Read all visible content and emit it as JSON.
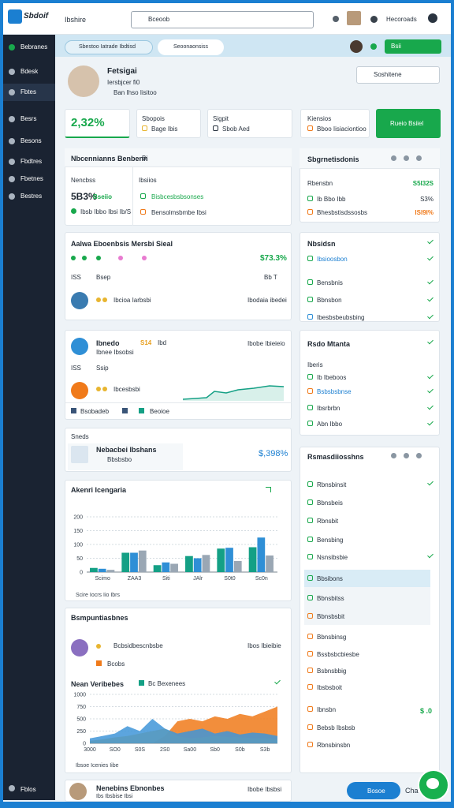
{
  "topbar": {
    "brand": "Sbdoif",
    "title": "Ibshire",
    "search": "Bceoob",
    "account": "Hecoroads"
  },
  "sidebar": {
    "items": [
      "Bebranes",
      "Bdesk",
      "Fbtes",
      "Besrs",
      "Besons",
      "Fbdtres",
      "Fbetnes",
      "Bestres"
    ],
    "footer": "Fblos"
  },
  "toolbar": {
    "filter": "Sbestoo Iatrade Ibdtisd",
    "search": "Seoonaonsiss",
    "button": "Bsii"
  },
  "profile": {
    "name": "Fetsigai",
    "role": "Iersbjcer fi0",
    "meta": "Ban Ihso Iisitoo",
    "search": "Soshitene"
  },
  "stats": {
    "headline": "2,32%",
    "cards": [
      {
        "title": "Sbopois",
        "sub": "Bage Ibis"
      },
      {
        "title": "Sigpit",
        "sub": "Sbob Aed"
      },
      {
        "title": "Kiensios",
        "sub": "Bboo Iisiaciontioo"
      }
    ],
    "action": "Rueio Bsiiel"
  },
  "overview": {
    "title": "Nbcennianns Benbenn",
    "tag": "Bi",
    "left_label": "Nencbss",
    "left_value": "5B3%",
    "left_sub": "Bseiio",
    "left_note": "Ibsb Ibbo Ibsi Ib/S",
    "right_label": "Ibsiios",
    "right_item1": "Bisbcesbsbsonses",
    "right_item2": "Bensolmsbmbe Ibsi"
  },
  "activity": {
    "title": "Aalwa Eboenbsis Mersbi Sieal",
    "value": "$73.3%",
    "row1": "ISS",
    "row2": "Bsep",
    "row2_meta": "Bb T",
    "person": "Ibcioa Iarbsbi",
    "person_date": "Ibodaia ibedei"
  },
  "trend": {
    "name": "Ibnedo",
    "value": "S14",
    "unit": "Ibd",
    "sub": "Ibnee Ibsobsi",
    "date": "Ibobe Ibieieio",
    "row1": "ISS",
    "row2": "Ssip",
    "person": "Ibcesbsbi",
    "foot1": "Bsobadeb",
    "foot2": "Beoioe"
  },
  "sends": {
    "title": "Sneds",
    "item": "Nebacbei Ibshans",
    "item_sub": "Bbsbsbo",
    "value": "$,398%"
  },
  "area_card": {
    "row1": "Bcbsidbescnbsbe",
    "date": "Ibos Ibieibie",
    "row2": "Bcobs",
    "legend1": "Nean Veribebes",
    "legend2": "Bc Bexenees"
  },
  "chart_data": [
    {
      "type": "bar",
      "title": "Akenri Icengaria",
      "categories": [
        "Scimo",
        "ZAA3",
        "Siti",
        "JAlr",
        "S0t0",
        "Sc0n"
      ],
      "series": [
        {
          "color": "#14a085",
          "values": [
            15,
            70,
            25,
            58,
            85,
            90
          ]
        },
        {
          "color": "#2f8fd6",
          "values": [
            12,
            70,
            35,
            50,
            88,
            125
          ]
        },
        {
          "color": "#9aa7b4",
          "values": [
            8,
            78,
            30,
            62,
            40,
            60
          ]
        }
      ],
      "ylim": [
        0,
        200
      ],
      "yticks": [
        0,
        50,
        100,
        150,
        200
      ],
      "grid": true,
      "note": "Scire Iocrs Iio Ibrs"
    },
    {
      "type": "area",
      "title": "Bsmpuntiasbnes",
      "categories": [
        "3000",
        null,
        "SO0",
        null,
        "S0S",
        null,
        "2S0",
        null,
        "Sa00",
        null,
        "Sb0",
        null,
        "S0b",
        null,
        "S3b",
        null
      ],
      "series": [
        {
          "color": "#f07a1a",
          "values": [
            0,
            0,
            0,
            0,
            0,
            0,
            150,
            450,
            500,
            450,
            550,
            500,
            600,
            550,
            650,
            750
          ]
        },
        {
          "color": "#e8b530",
          "values": [
            50,
            80,
            120,
            150,
            200,
            250,
            300,
            150,
            100,
            120,
            150,
            130,
            120,
            100,
            100,
            80
          ]
        },
        {
          "color": "#3f95d8",
          "values": [
            100,
            150,
            200,
            350,
            250,
            500,
            300,
            200,
            250,
            300,
            200,
            250,
            180,
            220,
            200,
            150
          ]
        }
      ],
      "ylim": [
        0,
        1000
      ],
      "yticks": [
        0,
        250,
        500,
        750,
        1000
      ],
      "grid": true,
      "note": "Ibsoe Icenies Iibe"
    }
  ],
  "segments": {
    "title": "Sbgrnetisdonis",
    "rows": [
      {
        "label": "Rbensbn",
        "value": "S5I32S"
      },
      {
        "label": "Ib Bbo Ibb",
        "value": "S3%"
      },
      {
        "label": "Bhesbstisdssosbs",
        "value": "ISI9I%"
      }
    ]
  },
  "checklist": {
    "title": "Nbsidsn",
    "items": [
      "Ibsioosbon",
      "Bensbnis",
      "Bbnsbon",
      "Ibesbsbeubsbing"
    ]
  },
  "radar": {
    "title": "Rsdo Mtanta",
    "items": [
      "Iberis",
      "Ib Ibeboos",
      "Bsbsbsbnse",
      "Ibsrbrbn",
      "Abn Ibbo"
    ]
  },
  "resources": {
    "title": "Rsmasdiiosshns",
    "items": [
      "Rbnsbinsit",
      "Bbnsbeis",
      "Rbnsbit",
      "Bensbing",
      "Nsnsibsbie",
      "Bbsibons",
      "Bbnsbitss",
      "Bbnsbsbit",
      "Bbnsbinsg",
      "Bssbsbcbiesbe",
      "Bsbnsbbig",
      "Ibsbsboit",
      "Ibnsbn",
      "Bebsb Ibsbsb",
      "Rbnsbinsbn"
    ],
    "total": "$ .0"
  },
  "footer": {
    "name": "Nenebins Ebnonbes",
    "sub": "Ibs Ibsbise Ibsi",
    "date": "Ibobe Ibsbsi",
    "button": "Bosoe",
    "chat": "Cha"
  }
}
